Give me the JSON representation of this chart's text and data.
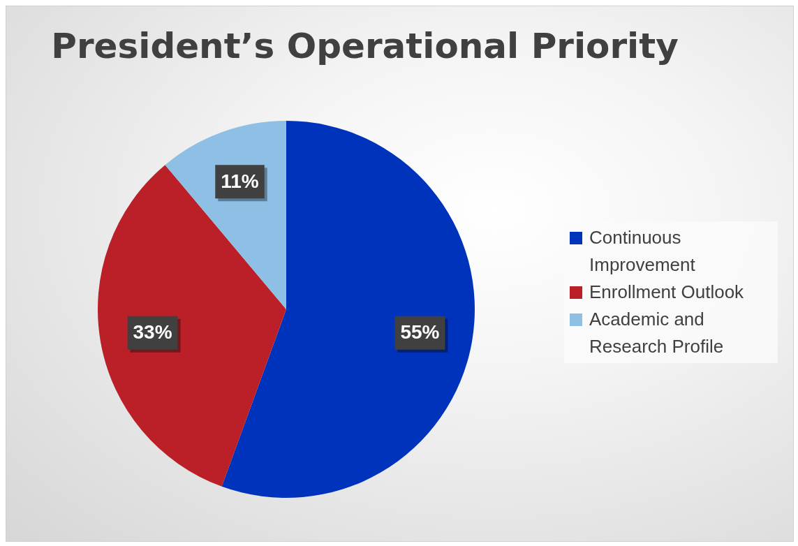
{
  "chart_data": {
    "type": "pie",
    "title": "President’s Operational Priority",
    "categories": [
      "Continuous Improvement",
      "Enrollment Outlook",
      "Academic and Research Profile"
    ],
    "values": [
      55,
      33,
      11
    ],
    "colors": [
      "#0033bb",
      "#bb2028",
      "#8ec0e6"
    ],
    "value_labels": [
      "55%",
      "33%",
      "11%"
    ],
    "legend": "right"
  }
}
